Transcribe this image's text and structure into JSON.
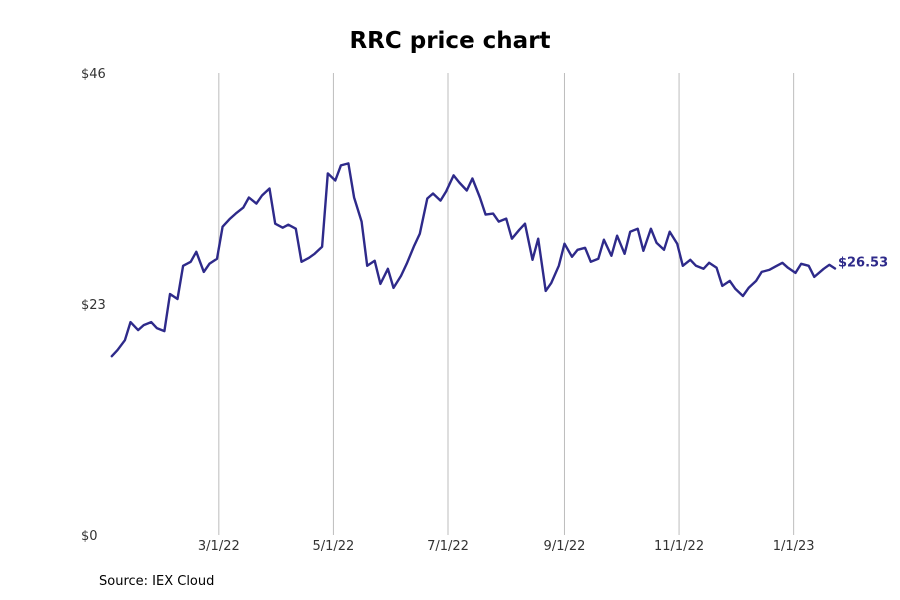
{
  "chart_data": {
    "type": "line",
    "title": "RRC price chart",
    "xlabel": "",
    "ylabel": "",
    "x_range": [
      "2022-01-01",
      "2023-01-31"
    ],
    "ylim": [
      0,
      46
    ],
    "y_ticks": [
      {
        "value": 0,
        "label": "$0"
      },
      {
        "value": 23,
        "label": "$23"
      },
      {
        "value": 46,
        "label": "$46"
      }
    ],
    "x_ticks": [
      {
        "date": "2022-03-01",
        "label": "3/1/22"
      },
      {
        "date": "2022-05-01",
        "label": "5/1/22"
      },
      {
        "date": "2022-07-01",
        "label": "7/1/22"
      },
      {
        "date": "2022-09-01",
        "label": "9/1/22"
      },
      {
        "date": "2022-11-01",
        "label": "11/1/22"
      },
      {
        "date": "2023-01-01",
        "label": "1/1/23"
      }
    ],
    "grid": {
      "vertical": true,
      "horizontal": false
    },
    "line_color": "#2e2a8a",
    "end_label": "$26.53",
    "series": [
      {
        "x": [
          "2022-01-03",
          "2022-01-06",
          "2022-01-10",
          "2022-01-13",
          "2022-01-17",
          "2022-01-20",
          "2022-01-24",
          "2022-01-27",
          "2022-01-31",
          "2022-02-03",
          "2022-02-07",
          "2022-02-10",
          "2022-02-14",
          "2022-02-17",
          "2022-02-21",
          "2022-02-24",
          "2022-02-28",
          "2022-03-03",
          "2022-03-07",
          "2022-03-10",
          "2022-03-14",
          "2022-03-17",
          "2022-03-21",
          "2022-03-24",
          "2022-03-28",
          "2022-03-31",
          "2022-04-04",
          "2022-04-07",
          "2022-04-11",
          "2022-04-14",
          "2022-04-18",
          "2022-04-21",
          "2022-04-25",
          "2022-04-28",
          "2022-05-02",
          "2022-05-05",
          "2022-05-09",
          "2022-05-12",
          "2022-05-16",
          "2022-05-19",
          "2022-05-23",
          "2022-05-26",
          "2022-05-30",
          "2022-06-02",
          "2022-06-06",
          "2022-06-09",
          "2022-06-13",
          "2022-06-16",
          "2022-06-20",
          "2022-06-23",
          "2022-06-27",
          "2022-06-30",
          "2022-07-04",
          "2022-07-07",
          "2022-07-11",
          "2022-07-14",
          "2022-07-18",
          "2022-07-21",
          "2022-07-25",
          "2022-07-28",
          "2022-08-01",
          "2022-08-04",
          "2022-08-08",
          "2022-08-11",
          "2022-08-15",
          "2022-08-18",
          "2022-08-22",
          "2022-08-25",
          "2022-08-29",
          "2022-09-01",
          "2022-09-05",
          "2022-09-08",
          "2022-09-12",
          "2022-09-15",
          "2022-09-19",
          "2022-09-22",
          "2022-09-26",
          "2022-09-29",
          "2022-10-03",
          "2022-10-06",
          "2022-10-10",
          "2022-10-13",
          "2022-10-17",
          "2022-10-20",
          "2022-10-24",
          "2022-10-27",
          "2022-10-31",
          "2022-11-03",
          "2022-11-07",
          "2022-11-10",
          "2022-11-14",
          "2022-11-17",
          "2022-11-21",
          "2022-11-24",
          "2022-11-28",
          "2022-12-01",
          "2022-12-05",
          "2022-12-08",
          "2022-12-12",
          "2022-12-15",
          "2022-12-19",
          "2022-12-22",
          "2022-12-26",
          "2022-12-29",
          "2023-01-02",
          "2023-01-05",
          "2023-01-09",
          "2023-01-12",
          "2023-01-17",
          "2023-01-20",
          "2023-01-23"
        ],
        "values": [
          17.8,
          18.4,
          19.4,
          21.2,
          20.4,
          20.9,
          21.2,
          20.6,
          20.3,
          24.0,
          23.5,
          26.8,
          27.2,
          28.2,
          26.2,
          27.0,
          27.5,
          30.7,
          31.5,
          32.0,
          32.6,
          33.6,
          33.0,
          33.8,
          34.5,
          31.0,
          30.6,
          30.9,
          30.5,
          27.2,
          27.6,
          28.0,
          28.7,
          36.0,
          35.3,
          36.8,
          37.0,
          33.6,
          31.2,
          26.8,
          27.3,
          25.0,
          26.5,
          24.6,
          25.8,
          27.0,
          28.8,
          30.0,
          33.5,
          34.0,
          33.3,
          34.2,
          35.8,
          35.1,
          34.3,
          35.5,
          33.6,
          31.9,
          32.0,
          31.2,
          31.5,
          29.5,
          30.4,
          31.0,
          27.4,
          29.5,
          24.3,
          25.1,
          26.8,
          29.0,
          27.7,
          28.4,
          28.6,
          27.2,
          27.5,
          29.4,
          27.8,
          29.8,
          28.0,
          30.2,
          30.5,
          28.3,
          30.5,
          29.1,
          28.4,
          30.2,
          29.0,
          26.8,
          27.4,
          26.8,
          26.5,
          27.1,
          26.6,
          24.8,
          25.3,
          24.5,
          23.8,
          24.6,
          25.3,
          26.2,
          26.4,
          26.7,
          27.1,
          26.6,
          26.1,
          27.0,
          26.8,
          25.7,
          26.5,
          26.9,
          26.53
        ]
      }
    ]
  },
  "source_text": "Source: IEX Cloud"
}
